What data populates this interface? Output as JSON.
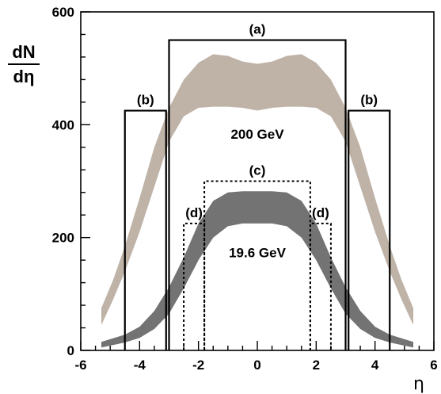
{
  "chart_data": {
    "type": "area",
    "title": "",
    "xlabel": "η",
    "ylabel": "dN/dη",
    "ylabel_num": "dN",
    "ylabel_den": "dη",
    "xlim": [
      -6,
      6
    ],
    "ylim": [
      0,
      600
    ],
    "xticks": [
      -6,
      -4,
      -2,
      0,
      2,
      4,
      6
    ],
    "yticks": [
      0,
      200,
      400,
      600
    ],
    "grid": false,
    "series": [
      {
        "name": "200 GeV",
        "color": "#bfb3a8",
        "x": [
          -5.3,
          -4.9,
          -4.5,
          -4.0,
          -3.5,
          -3.0,
          -2.5,
          -2.0,
          -1.5,
          -1.0,
          -0.5,
          0.0,
          0.5,
          1.0,
          1.5,
          2.0,
          2.5,
          3.0,
          3.5,
          4.0,
          4.5,
          4.9,
          5.3
        ],
        "lower": [
          45,
          90,
          140,
          210,
          290,
          370,
          415,
          430,
          432,
          432,
          430,
          425,
          430,
          432,
          432,
          430,
          415,
          370,
          290,
          210,
          140,
          90,
          45
        ],
        "upper": [
          75,
          125,
          185,
          270,
          360,
          430,
          480,
          510,
          525,
          522,
          512,
          508,
          512,
          522,
          525,
          510,
          480,
          430,
          360,
          270,
          185,
          125,
          75
        ]
      },
      {
        "name": "19.6 GeV",
        "color": "#737373",
        "x": [
          -5.3,
          -4.5,
          -4.0,
          -3.5,
          -3.0,
          -2.5,
          -2.0,
          -1.5,
          -1.0,
          -0.5,
          0.0,
          0.5,
          1.0,
          1.5,
          2.0,
          2.5,
          3.0,
          3.5,
          4.0,
          4.5,
          5.3
        ],
        "lower": [
          5,
          14,
          22,
          38,
          65,
          110,
          160,
          200,
          220,
          225,
          225,
          225,
          220,
          200,
          160,
          110,
          65,
          38,
          22,
          14,
          5
        ],
        "upper": [
          15,
          28,
          42,
          70,
          112,
          165,
          225,
          265,
          280,
          282,
          282,
          282,
          280,
          265,
          225,
          165,
          112,
          70,
          42,
          28,
          15
        ]
      }
    ],
    "regions": [
      {
        "label": "(a)",
        "x": [
          -3.0,
          3.0
        ],
        "y": 550,
        "style": "solid"
      },
      {
        "label": "(b)",
        "x": [
          -4.5,
          -3.1
        ],
        "y": 425,
        "style": "solid"
      },
      {
        "label": "(b)",
        "x": [
          3.1,
          4.5
        ],
        "y": 425,
        "style": "solid"
      },
      {
        "label": "(c)",
        "x": [
          -1.8,
          1.8
        ],
        "y": 300,
        "style": "dotted"
      },
      {
        "label": "(d)",
        "x": [
          -2.5,
          -1.8
        ],
        "y": 225,
        "style": "dotted"
      },
      {
        "label": "(d)",
        "x": [
          1.8,
          2.5
        ],
        "y": 225,
        "style": "dotted"
      }
    ],
    "annotations": [
      {
        "text": "200 GeV",
        "x": 0,
        "y": 375
      },
      {
        "text": "19.6 GeV",
        "x": 0,
        "y": 165
      }
    ]
  }
}
